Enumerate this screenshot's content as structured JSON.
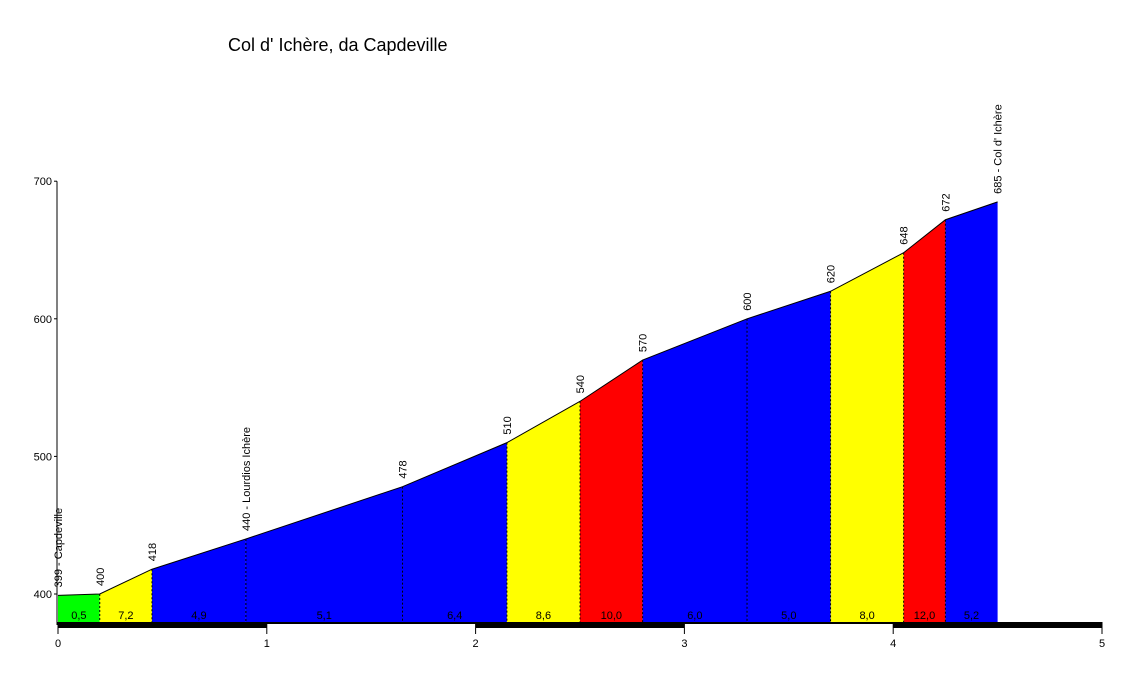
{
  "chart_data": {
    "type": "area",
    "title": "Col d' Ichère, da Capdeville",
    "xlim": [
      0,
      5
    ],
    "ylim": [
      380,
      700
    ],
    "x_ticks": [
      "0",
      "1",
      "2",
      "3",
      "4",
      "5"
    ],
    "y_ticks": [
      "400",
      "500",
      "600",
      "700"
    ],
    "grid": false,
    "colors": {
      "green": "#00ff00",
      "yellow": "#ffff00",
      "red": "#ff0000",
      "blue": "#0000ff",
      "axis": "#000000"
    },
    "points": [
      {
        "x": 0.0,
        "y": 399,
        "label": "399 - Capdeville"
      },
      {
        "x": 0.2,
        "y": 400,
        "label": "400"
      },
      {
        "x": 0.45,
        "y": 418,
        "label": "418"
      },
      {
        "x": 0.9,
        "y": 440,
        "label": "440 - Lourdios Ichère"
      },
      {
        "x": 1.65,
        "y": 478,
        "label": "478"
      },
      {
        "x": 2.15,
        "y": 510,
        "label": "510"
      },
      {
        "x": 2.5,
        "y": 540,
        "label": "540"
      },
      {
        "x": 2.8,
        "y": 570,
        "label": "570"
      },
      {
        "x": 3.3,
        "y": 600,
        "label": "600"
      },
      {
        "x": 3.7,
        "y": 620,
        "label": "620"
      },
      {
        "x": 4.05,
        "y": 648,
        "label": "648"
      },
      {
        "x": 4.25,
        "y": 672,
        "label": "672"
      },
      {
        "x": 4.5,
        "y": 685,
        "label": "685 - Col d' Ichère"
      }
    ],
    "segments": [
      {
        "x0": 0.0,
        "x1": 0.2,
        "color": "green",
        "gradient": "0,5"
      },
      {
        "x0": 0.2,
        "x1": 0.45,
        "color": "yellow",
        "gradient": "7,2"
      },
      {
        "x0": 0.45,
        "x1": 0.9,
        "color": "blue",
        "gradient": "4,9"
      },
      {
        "x0": 0.9,
        "x1": 1.65,
        "color": "blue",
        "gradient": "5,1"
      },
      {
        "x0": 1.65,
        "x1": 2.15,
        "color": "blue",
        "gradient": "6,4"
      },
      {
        "x0": 2.15,
        "x1": 2.5,
        "color": "yellow",
        "gradient": "8,6"
      },
      {
        "x0": 2.5,
        "x1": 2.8,
        "color": "red",
        "gradient": "10,0"
      },
      {
        "x0": 2.8,
        "x1": 3.3,
        "color": "blue",
        "gradient": "6,0"
      },
      {
        "x0": 3.3,
        "x1": 3.7,
        "color": "blue",
        "gradient": "5,0"
      },
      {
        "x0": 3.7,
        "x1": 4.05,
        "color": "yellow",
        "gradient": "8,0"
      },
      {
        "x0": 4.05,
        "x1": 4.25,
        "color": "red",
        "gradient": "12,0"
      },
      {
        "x0": 4.25,
        "x1": 4.5,
        "color": "blue",
        "gradient": "5,2"
      }
    ]
  }
}
